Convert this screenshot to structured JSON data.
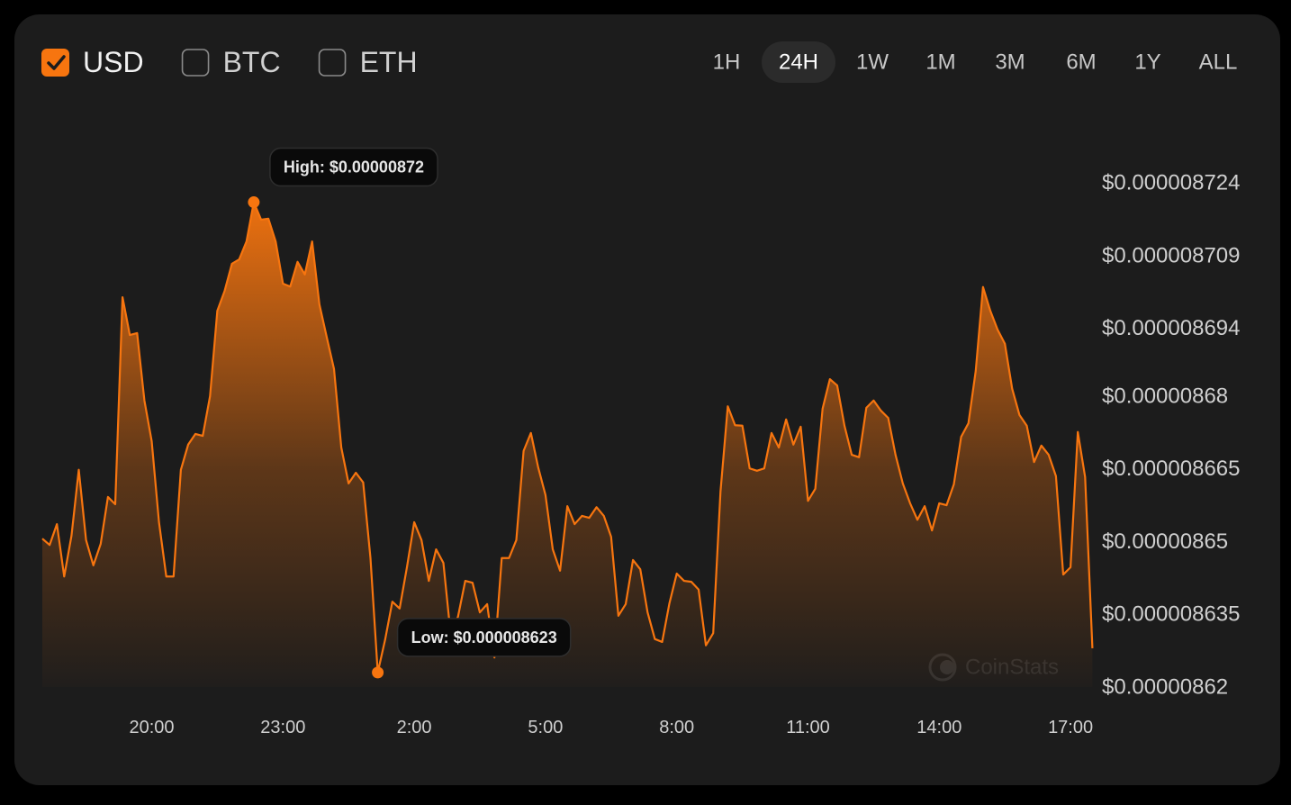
{
  "currencies": [
    {
      "label": "USD",
      "checked": true
    },
    {
      "label": "BTC",
      "checked": false
    },
    {
      "label": "ETH",
      "checked": false
    }
  ],
  "ranges": [
    {
      "label": "1H",
      "active": false
    },
    {
      "label": "24H",
      "active": true
    },
    {
      "label": "1W",
      "active": false
    },
    {
      "label": "1M",
      "active": false
    },
    {
      "label": "3M",
      "active": false
    },
    {
      "label": "6M",
      "active": false
    },
    {
      "label": "1Y",
      "active": false
    },
    {
      "label": "ALL",
      "active": false
    }
  ],
  "watermark": "CoinStats",
  "chart_data": {
    "type": "area",
    "color": "#f7750f",
    "grid": true,
    "categories": [
      null,
      null,
      null,
      null,
      null,
      null,
      null,
      null,
      null,
      null,
      null,
      null,
      null,
      null,
      null,
      "20:00",
      null,
      null,
      null,
      null,
      null,
      null,
      null,
      null,
      null,
      null,
      null,
      null,
      null,
      null,
      null,
      null,
      null,
      "23:00",
      null,
      null,
      null,
      null,
      null,
      null,
      null,
      null,
      null,
      null,
      null,
      null,
      null,
      null,
      null,
      null,
      null,
      "2:00",
      null,
      null,
      null,
      null,
      null,
      null,
      null,
      null,
      null,
      null,
      null,
      null,
      null,
      null,
      null,
      null,
      null,
      "5:00",
      null,
      null,
      null,
      null,
      null,
      null,
      null,
      null,
      null,
      null,
      null,
      null,
      null,
      null,
      null,
      null,
      null,
      "8:00",
      null,
      null,
      null,
      null,
      null,
      null,
      null,
      null,
      null,
      null,
      null,
      null,
      null,
      null,
      null,
      null,
      null,
      "11:00",
      null,
      null,
      null,
      null,
      null,
      null,
      null,
      null,
      null,
      null,
      null,
      null,
      null,
      null,
      null,
      null,
      null,
      "14:00",
      null,
      null,
      null,
      null,
      null,
      null,
      null,
      null,
      null,
      null,
      null,
      null,
      null,
      null,
      null,
      null,
      null,
      "17:00",
      null,
      null,
      null
    ],
    "values": [
      8.6506e-06,
      8.6493e-06,
      8.6536e-06,
      8.6428e-06,
      8.6512e-06,
      8.6648e-06,
      8.6503e-06,
      8.6451e-06,
      8.6495e-06,
      8.6592e-06,
      8.6577e-06,
      8.7004e-06,
      8.6926e-06,
      8.693e-06,
      8.6791e-06,
      8.6707e-06,
      8.654e-06,
      8.6428e-06,
      8.6428e-06,
      8.6648e-06,
      8.67e-06,
      8.6722e-06,
      8.6718e-06,
      8.68e-06,
      8.6976e-06,
      8.7017e-06,
      8.7073e-06,
      8.7082e-06,
      8.7119e-06,
      8.72e-06,
      8.7164e-06,
      8.7166e-06,
      8.7119e-06,
      8.7032e-06,
      8.7026e-06,
      8.7077e-06,
      8.7051e-06,
      8.7119e-06,
      8.6989e-06,
      8.6922e-06,
      8.6856e-06,
      8.6694e-06,
      8.662e-06,
      8.6642e-06,
      8.6622e-06,
      8.6466e-06,
      8.623e-06,
      8.6297e-06,
      8.6376e-06,
      8.6362e-06,
      8.6447e-06,
      8.654e-06,
      8.6503e-06,
      8.6419e-06,
      8.6484e-06,
      8.6456e-06,
      8.6308e-06,
      8.6345e-06,
      8.6419e-06,
      8.6415e-06,
      8.6354e-06,
      8.6371e-06,
      8.6261e-06,
      8.6466e-06,
      8.6466e-06,
      8.6503e-06,
      8.6687e-06,
      8.6724e-06,
      8.6653e-06,
      8.6596e-06,
      8.6484e-06,
      8.644e-06,
      8.6573e-06,
      8.6536e-06,
      8.6553e-06,
      8.6549e-06,
      8.6571e-06,
      8.6553e-06,
      8.651e-06,
      8.6347e-06,
      8.6371e-06,
      8.6462e-06,
      8.6443e-06,
      8.6354e-06,
      8.6299e-06,
      8.6293e-06,
      8.6373e-06,
      8.6434e-06,
      8.6419e-06,
      8.6417e-06,
      8.6401e-06,
      8.6286e-06,
      8.6311e-06,
      8.6603e-06,
      8.6779e-06,
      8.674e-06,
      8.6739e-06,
      8.6651e-06,
      8.6646e-06,
      8.6651e-06,
      8.6724e-06,
      8.6694e-06,
      8.6752e-06,
      8.67e-06,
      8.6737e-06,
      8.6584e-06,
      8.6609e-06,
      8.6774e-06,
      8.6835e-06,
      8.6822e-06,
      8.6739e-06,
      8.6679e-06,
      8.6674e-06,
      8.6776e-06,
      8.6791e-06,
      8.677e-06,
      8.6755e-06,
      8.6679e-06,
      8.662e-06,
      8.6579e-06,
      8.6545e-06,
      8.6573e-06,
      8.6523e-06,
      8.6579e-06,
      8.6575e-06,
      8.6618e-06,
      8.6716e-06,
      8.6744e-06,
      8.6852e-06,
      8.7025e-06,
      8.6976e-06,
      8.6937e-06,
      8.6908e-06,
      8.6815e-06,
      8.6761e-06,
      8.6739e-06,
      8.6664e-06,
      8.6698e-06,
      8.6679e-06,
      8.6635e-06,
      8.6432e-06,
      8.6447e-06,
      8.6726e-06,
      8.6633e-06,
      8.628e-06
    ],
    "ylim": [
      8.62e-06,
      8.724e-06
    ],
    "yticks": [
      {
        "value": 8.724e-06,
        "label": "$0.000008724"
      },
      {
        "value": 8.709e-06,
        "label": "$0.000008709"
      },
      {
        "value": 8.694e-06,
        "label": "$0.000008694"
      },
      {
        "value": 8.68e-06,
        "label": "$0.00000868"
      },
      {
        "value": 8.665e-06,
        "label": "$0.000008665"
      },
      {
        "value": 8.65e-06,
        "label": "$0.00000865"
      },
      {
        "value": 8.635e-06,
        "label": "$0.000008635"
      },
      {
        "value": 8.62e-06,
        "label": "$0.00000862"
      }
    ],
    "annotations": [
      {
        "text": "High: $0.00000872",
        "value": 8.72e-06
      },
      {
        "text": "Low: $0.000008623",
        "value": 8.623e-06
      }
    ]
  }
}
